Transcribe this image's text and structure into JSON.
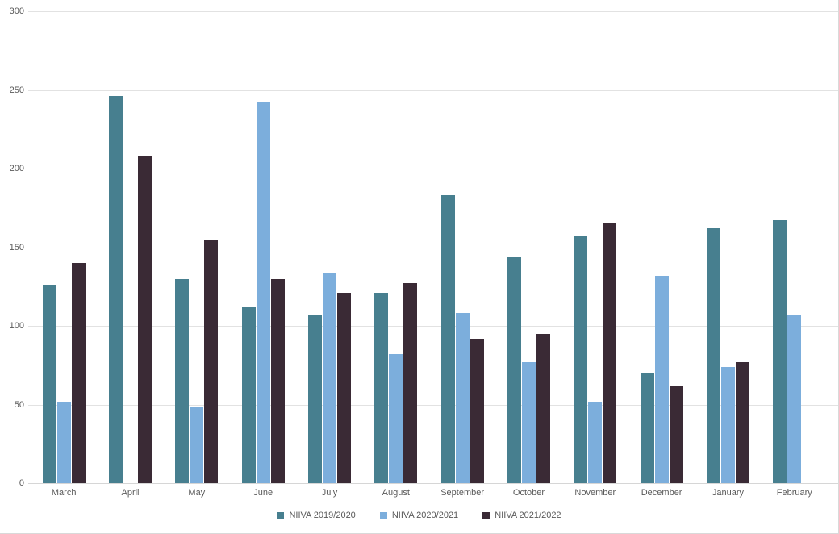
{
  "chart_data": {
    "type": "bar",
    "title": "",
    "xlabel": "",
    "ylabel": "",
    "categories": [
      "March",
      "April",
      "May",
      "June",
      "July",
      "August",
      "September",
      "October",
      "November",
      "December",
      "January",
      "February"
    ],
    "series": [
      {
        "name": "NIIVA 2019/2020",
        "color": "#477F8F",
        "values": [
          126,
          246,
          130,
          112,
          107,
          121,
          183,
          144,
          157,
          70,
          162,
          167
        ]
      },
      {
        "name": "NIIVA 2020/2021",
        "color": "#7CAEDC",
        "values": [
          52,
          null,
          48,
          242,
          134,
          82,
          108,
          77,
          52,
          132,
          74,
          107
        ]
      },
      {
        "name": "NIIVA 2021/2022",
        "color": "#3A2A35",
        "values": [
          140,
          208,
          155,
          130,
          121,
          127,
          92,
          95,
          165,
          62,
          77,
          null
        ]
      }
    ],
    "ylim": [
      0,
      300
    ],
    "ytick_interval": 50,
    "yticks": [
      "300",
      "250",
      "200",
      "150",
      "100",
      "50",
      "0"
    ],
    "grid": true,
    "legend_position": "bottom",
    "colors": {
      "axis_label": "#595959",
      "gridline": "#E2E2E2",
      "background": "#FFFFFF"
    }
  }
}
